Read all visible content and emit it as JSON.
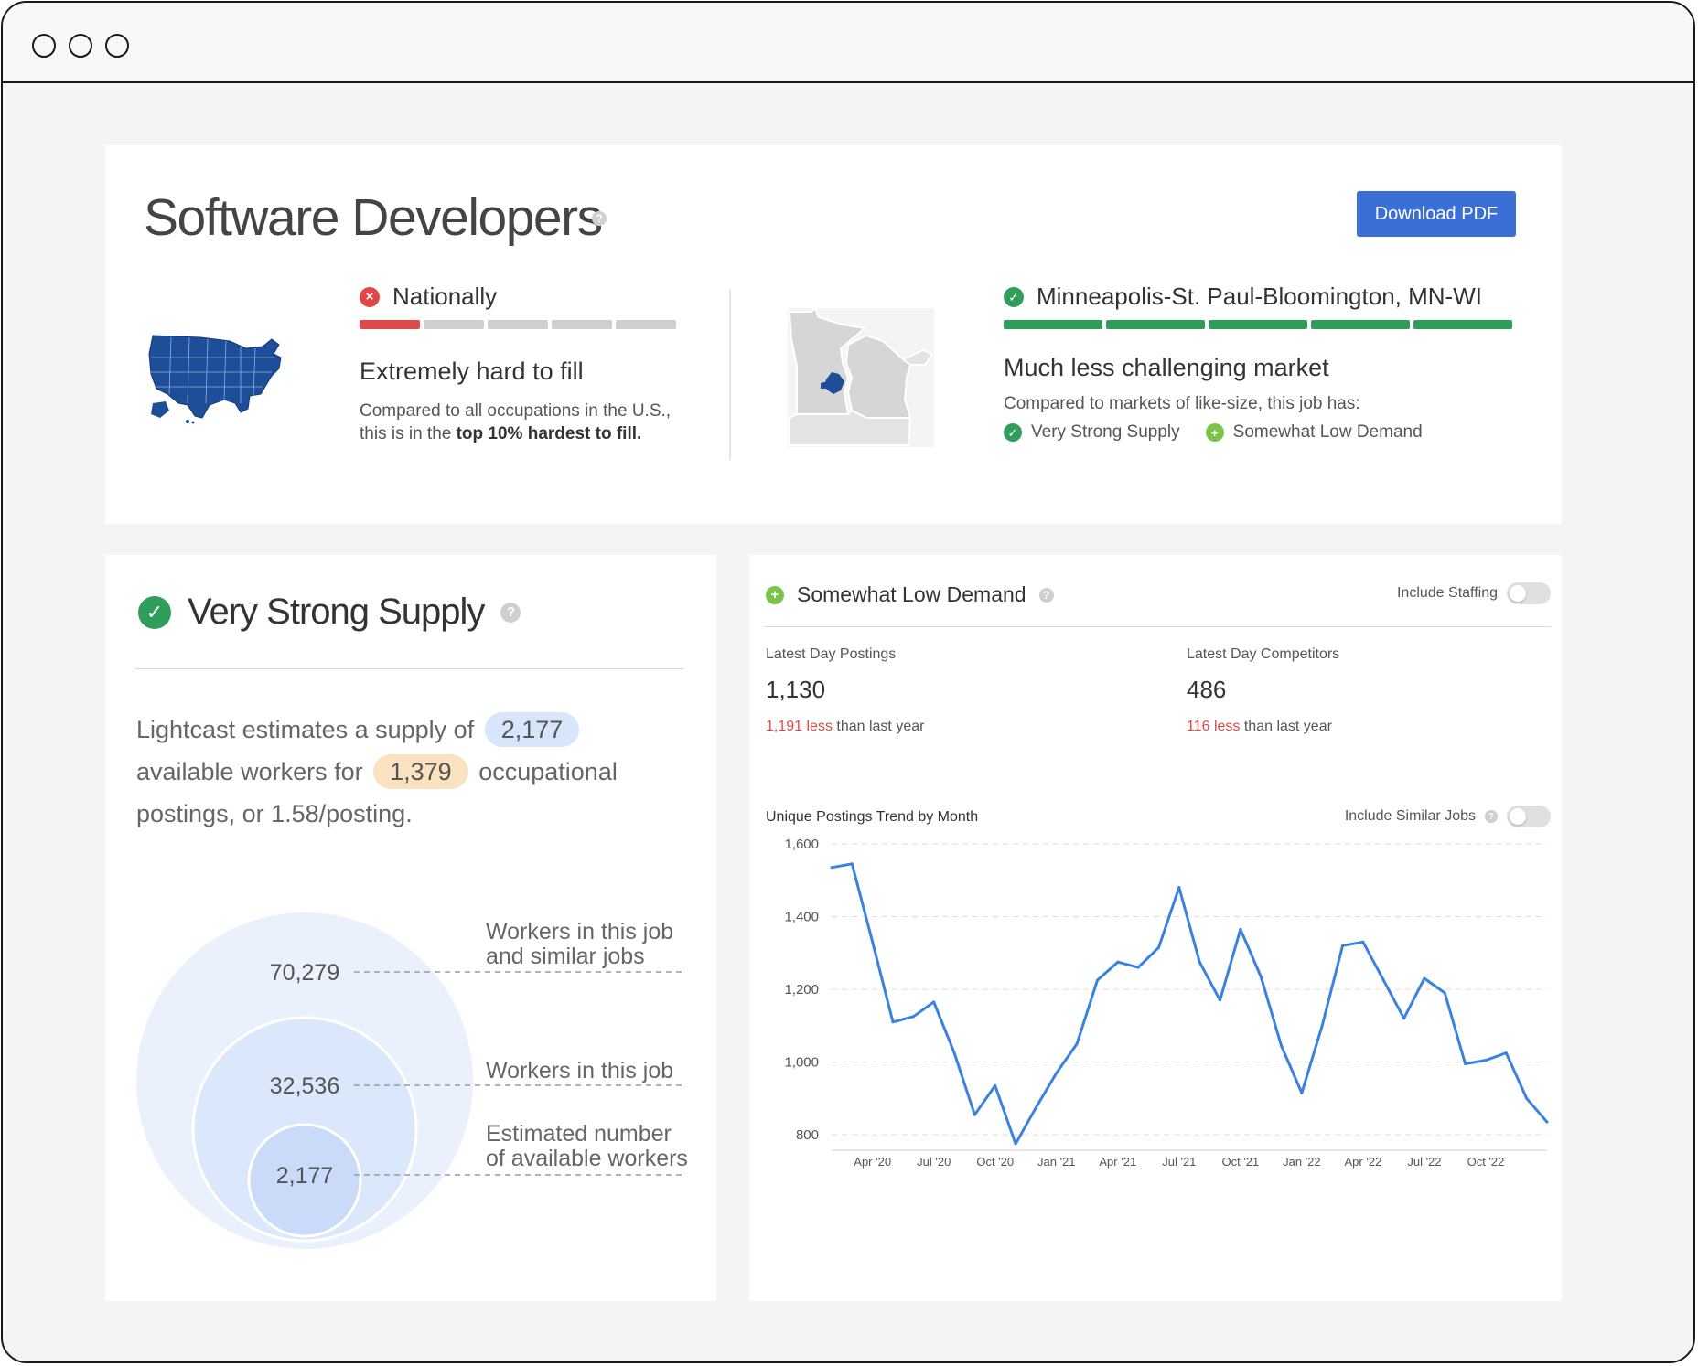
{
  "header": {
    "title": "Software Developers",
    "download_label": "Download PDF"
  },
  "national": {
    "label": "Nationally",
    "status_icon": "x-circle-icon",
    "status_color": "#e04848",
    "bar_level": 1,
    "bar_segments": 5,
    "headline": "Extremely hard to fill",
    "desc_prefix": "Compared to all occupations in the U.S., this is in the ",
    "desc_bold": "top 10% hardest to fill.",
    "map": "us-map"
  },
  "metro": {
    "label": "Minneapolis-St. Paul-Bloomington, MN-WI",
    "status_icon": "check-circle-icon",
    "status_color": "#2f9e5b",
    "bar_level": 5,
    "bar_segments": 5,
    "headline": "Much less challenging market",
    "desc": "Compared to markets of like-size, this job has:",
    "tags": [
      {
        "label": "Very Strong Supply",
        "icon": "check-circle-icon",
        "color": "#2f9e5b"
      },
      {
        "label": "Somewhat Low Demand",
        "icon": "plus-circle-icon",
        "color": "#7cc349"
      }
    ],
    "map": "minnesota-wisconsin-map"
  },
  "supply": {
    "title": "Very Strong Supply",
    "text_1": "Lightcast estimates a supply of",
    "supply_value": "2,177",
    "text_2": "available workers for",
    "postings_value": "1,379",
    "text_3": "occupational postings, or 1.58/posting.",
    "bubbles": [
      {
        "value": "70,279",
        "label_line1": "Workers in this job",
        "label_line2": "and similar jobs"
      },
      {
        "value": "32,536",
        "label_line1": "Workers in this job",
        "label_line2": ""
      },
      {
        "value": "2,177",
        "label_line1": "Estimated number",
        "label_line2": "of available workers"
      }
    ]
  },
  "demand": {
    "title": "Somewhat Low Demand",
    "include_staffing_label": "Include Staffing",
    "include_staffing_on": false,
    "postings": {
      "label": "Latest Day Postings",
      "value": "1,130",
      "change_value": "1,191 less",
      "change_suffix": "than last year"
    },
    "competitors": {
      "label": "Latest Day Competitors",
      "value": "486",
      "change_value": "116 less",
      "change_suffix": "than last year"
    },
    "chart_title": "Unique Postings Trend by Month",
    "include_similar_label": "Include Similar Jobs",
    "include_similar_on": false
  },
  "chart_data": {
    "type": "line",
    "title": "Unique Postings Trend by Month",
    "xlabel": "",
    "ylabel": "",
    "ylim": [
      760,
      1640
    ],
    "yticks": [
      800,
      1000,
      1200,
      1400,
      1600
    ],
    "ytick_labels": [
      "800",
      "1,000",
      "1,200",
      "1,400",
      "1,600"
    ],
    "xtick_labels": [
      "Apr '20",
      "Jul '20",
      "Oct '20",
      "Jan '21",
      "Apr '21",
      "Jul '21",
      "Oct '21",
      "Jan '22",
      "Apr '22",
      "Jul '22",
      "Oct '22"
    ],
    "xtick_index": [
      2,
      5,
      8,
      11,
      14,
      17,
      20,
      23,
      26,
      29,
      32
    ],
    "grid": true,
    "color": "#3b82e0",
    "series": [
      {
        "x": [
          "Feb '20",
          "Mar '20",
          "Apr '20",
          "May '20",
          "Jun '20",
          "Jul '20",
          "Aug '20",
          "Sep '20",
          "Oct '20",
          "Nov '20",
          "Dec '20",
          "Jan '21",
          "Feb '21",
          "Mar '21",
          "Apr '21",
          "May '21",
          "Jun '21",
          "Jul '21",
          "Aug '21",
          "Sep '21",
          "Oct '21",
          "Nov '21",
          "Dec '21",
          "Jan '22",
          "Feb '22",
          "Mar '22",
          "Apr '22",
          "May '22",
          "Jun '22",
          "Jul '22",
          "Aug '22",
          "Sep '22",
          "Oct '22",
          "Nov '22",
          "Dec '22",
          "Jan '23"
        ],
        "values": [
          1535,
          1545,
          1330,
          1110,
          1125,
          1165,
          1025,
          855,
          935,
          775,
          875,
          970,
          1050,
          1225,
          1275,
          1260,
          1315,
          1480,
          1275,
          1170,
          1365,
          1235,
          1045,
          915,
          1100,
          1320,
          1330,
          1225,
          1120,
          1230,
          1190,
          995,
          1005,
          1025,
          900,
          835
        ]
      }
    ]
  }
}
